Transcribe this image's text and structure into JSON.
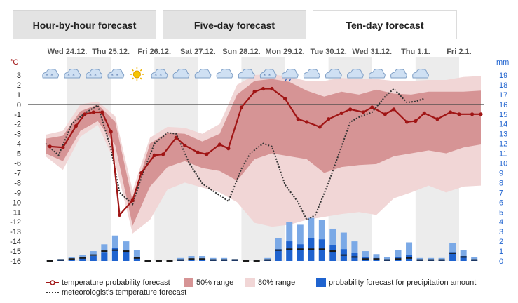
{
  "tabs": [
    {
      "label": "Hour-by-hour forecast",
      "active": false
    },
    {
      "label": "Five-day forecast",
      "active": false
    },
    {
      "label": "Ten-day forecast",
      "active": true
    }
  ],
  "colors": {
    "temp_line": "#a01515",
    "range50": "#d69495",
    "range80": "#f1d6d6",
    "precip": "#1f63cf",
    "precip_light": "#7ba9e6",
    "day_band": "#ececec",
    "left_axis": "#a01515",
    "right_axis": "#1f63cf"
  },
  "chart_data": {
    "type": "line",
    "title": "",
    "days": [
      "Wed 24.12.",
      "Thu 25.12.",
      "Fri 26.12.",
      "Sat 27.12.",
      "Sun 28.12.",
      "Mon 29.12.",
      "Tue 30.12.",
      "Wed 31.12.",
      "Thu 1.1.",
      "Fri 2.1."
    ],
    "day_icons": [
      "snow-cloud-icon",
      "snow-cloud-icon",
      "snow-cloud-icon",
      "snow-cloud-icon",
      "sun-icon",
      "cloud-snow-icon",
      "sun-cloud-icon",
      "cloud-icon",
      "sun-cloud-icon",
      "cloud-icon",
      "snow-cloud-icon",
      "rain-cloud-icon",
      "cloud-icon",
      "cloud-icon",
      "cloud-icon",
      "cloud-icon",
      "sun-cloud-icon",
      "cloud-icon"
    ],
    "y_left_unit": "°C",
    "y_right_unit": "mm",
    "ylim": [
      -16,
      3
    ],
    "y2lim": [
      0,
      19
    ],
    "yticks": [
      3,
      2,
      1,
      0,
      -1,
      -2,
      -3,
      -4,
      -5,
      -6,
      -7,
      -8,
      -9,
      -10,
      -11,
      -12,
      -13,
      -14,
      -15,
      -16
    ],
    "y2ticks": [
      19,
      18,
      17,
      16,
      15,
      14,
      13,
      12,
      11,
      10,
      9,
      8,
      7,
      6,
      5,
      4,
      3,
      2,
      1,
      0
    ],
    "x_days": [
      0,
      10
    ],
    "series": [
      {
        "name": "temperature probability forecast",
        "x": [
          0.1,
          0.4,
          0.7,
          0.9,
          1.1,
          1.3,
          1.5,
          1.7,
          2.0,
          2.2,
          2.5,
          2.7,
          3.0,
          3.2,
          3.5,
          3.7,
          4.0,
          4.2,
          4.5,
          4.8,
          5.0,
          5.2,
          5.5,
          5.8,
          6.0,
          6.3,
          6.5,
          6.8,
          7.0,
          7.3,
          7.5,
          7.8,
          8.0,
          8.3,
          8.5,
          8.7,
          9.0,
          9.3,
          9.5,
          9.8,
          10.0
        ],
        "y": [
          -4.3,
          -4.4,
          -2.2,
          -1.0,
          -0.8,
          -0.8,
          -2.8,
          -11.3,
          -9.8,
          -7.0,
          -5.2,
          -5.1,
          -3.4,
          -4.2,
          -4.9,
          -5.1,
          -4.1,
          -4.5,
          -0.3,
          1.3,
          1.6,
          1.6,
          0.6,
          -1.5,
          -1.8,
          -2.3,
          -1.5,
          -0.9,
          -0.5,
          -0.8,
          -0.3,
          -1.0,
          -0.5,
          -1.8,
          -1.7,
          -0.9,
          -1.5,
          -0.8,
          -1.0,
          -1.0,
          -1.0
        ]
      },
      {
        "name": "meteorologist's temperature forecast",
        "x": [
          0.0,
          0.3,
          0.6,
          0.9,
          1.2,
          1.5,
          1.7,
          2.0,
          2.2,
          2.5,
          2.8,
          3.0,
          3.3,
          3.6,
          3.9,
          4.2,
          4.5,
          4.7,
          5.0,
          5.2,
          5.5,
          5.8,
          6.0,
          6.2,
          6.5,
          6.8,
          7.0,
          7.2,
          7.5,
          7.8,
          8.0,
          8.3,
          8.5,
          8.7
        ],
        "y": [
          -4.0,
          -5.2,
          -2.0,
          -0.9,
          -0.1,
          -4.5,
          -9.0,
          -10.2,
          -7.5,
          -4.0,
          -2.9,
          -3.0,
          -6.0,
          -8.1,
          -9.0,
          -9.9,
          -6.6,
          -5.0,
          -4.0,
          -4.3,
          -8.2,
          -10.0,
          -11.8,
          -11.3,
          -8.0,
          -4.3,
          -1.8,
          -1.3,
          -0.8,
          0.8,
          1.6,
          0.2,
          0.3,
          0.6
        ]
      }
    ],
    "range50": {
      "x": [
        0.0,
        0.4,
        0.8,
        1.2,
        1.6,
        2.0,
        2.4,
        2.8,
        3.2,
        3.6,
        4.0,
        4.4,
        4.8,
        5.2,
        5.6,
        6.0,
        6.4,
        6.8,
        7.2,
        7.6,
        8.0,
        8.4,
        8.8,
        9.2,
        9.6,
        10.0
      ],
      "upper": [
        -3.5,
        -3.2,
        -0.7,
        0.0,
        -1.8,
        -9.9,
        -4.0,
        -2.9,
        -3.0,
        -3.8,
        -3.0,
        1.0,
        2.4,
        2.6,
        2.3,
        1.4,
        0.8,
        1.3,
        1.0,
        1.5,
        1.1,
        1.0,
        1.3,
        1.3,
        1.3,
        1.4
      ],
      "lower": [
        -5.0,
        -5.8,
        -2.7,
        -1.7,
        -4.2,
        -12.4,
        -8.4,
        -6.4,
        -5.8,
        -6.5,
        -6.8,
        -7.8,
        -5.6,
        -5.0,
        -5.3,
        -5.6,
        -7.0,
        -6.4,
        -6.2,
        -6.1,
        -5.3,
        -5.0,
        -4.7,
        -5.0,
        -4.4,
        -4.1
      ]
    },
    "range80": {
      "x": [
        0.0,
        0.4,
        0.8,
        1.2,
        1.6,
        2.0,
        2.4,
        2.8,
        3.2,
        3.6,
        4.0,
        4.4,
        4.8,
        5.2,
        5.6,
        6.0,
        6.4,
        6.8,
        7.2,
        7.6,
        8.0,
        8.4,
        8.8,
        9.2,
        9.6,
        10.0
      ],
      "upper": [
        -3.1,
        -2.7,
        0.0,
        0.3,
        -1.2,
        -8.8,
        -3.4,
        -2.3,
        -2.4,
        -3.0,
        -2.0,
        2.0,
        3.0,
        3.1,
        2.8,
        2.4,
        2.4,
        2.7,
        2.6,
        2.6,
        2.4,
        2.4,
        2.5,
        2.5,
        2.8,
        2.9
      ],
      "lower": [
        -5.3,
        -6.7,
        -3.3,
        -2.1,
        -6.0,
        -13.2,
        -11.8,
        -8.7,
        -8.0,
        -8.5,
        -9.0,
        -10.0,
        -12.1,
        -12.5,
        -12.3,
        -11.8,
        -11.5,
        -11.2,
        -11.0,
        -11.3,
        -9.6,
        -9.0,
        -8.3,
        -9.0,
        -8.4,
        -8.3
      ]
    },
    "precip": {
      "x": [
        0.1,
        0.35,
        0.6,
        0.85,
        1.1,
        1.35,
        1.6,
        1.85,
        2.1,
        2.35,
        2.6,
        2.85,
        3.1,
        3.35,
        3.6,
        3.85,
        4.1,
        4.35,
        4.6,
        4.85,
        5.1,
        5.35,
        5.6,
        5.85,
        6.1,
        6.35,
        6.6,
        6.85,
        7.1,
        7.35,
        7.6,
        7.85,
        8.1,
        8.35,
        8.6,
        8.85,
        9.1,
        9.35,
        9.6,
        9.85
      ],
      "high": [
        0.1,
        0.2,
        0.4,
        0.6,
        1.0,
        1.7,
        2.6,
        2.0,
        1.1,
        0.0,
        0.0,
        0.1,
        0.3,
        0.5,
        0.5,
        0.3,
        0.3,
        0.2,
        0.1,
        0.1,
        0.3,
        2.3,
        4.0,
        3.7,
        4.4,
        4.2,
        3.3,
        2.9,
        2.0,
        1.0,
        0.7,
        0.4,
        1.1,
        1.9,
        0.3,
        0.3,
        0.3,
        1.8,
        1.1,
        0.4
      ],
      "low": [
        0.0,
        0.1,
        0.2,
        0.3,
        0.5,
        0.9,
        1.3,
        1.0,
        0.3,
        0.0,
        0.0,
        0.0,
        0.1,
        0.2,
        0.2,
        0.1,
        0.1,
        0.1,
        0.0,
        0.0,
        0.1,
        1.2,
        2.0,
        1.7,
        2.3,
        2.2,
        1.6,
        1.2,
        0.8,
        0.4,
        0.3,
        0.1,
        0.4,
        0.6,
        0.1,
        0.1,
        0.1,
        0.9,
        0.5,
        0.1
      ],
      "median": [
        0.0,
        0.1,
        0.2,
        0.3,
        0.6,
        1.0,
        1.1,
        1.0,
        0.3,
        0.0,
        0.0,
        0.0,
        0.1,
        0.2,
        0.2,
        0.1,
        0.1,
        0.1,
        0.0,
        0.0,
        0.1,
        1.1,
        1.2,
        1.2,
        1.2,
        1.2,
        1.0,
        0.6,
        0.4,
        0.2,
        0.2,
        0.1,
        0.2,
        0.3,
        0.1,
        0.1,
        0.1,
        0.8,
        0.4,
        0.1
      ]
    }
  },
  "legend": {
    "temp": "temperature probability forecast",
    "range50": "50% range",
    "range80": "80% range",
    "precip": "probability forecast for precipitation amount",
    "meteo": "meteorologist's temperature forecast"
  }
}
